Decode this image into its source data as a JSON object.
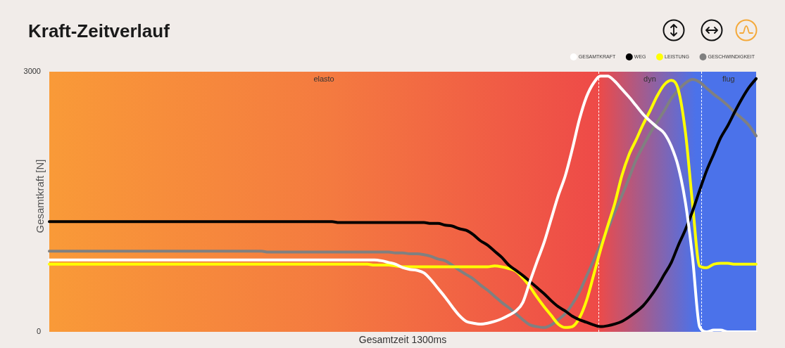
{
  "chart_data": {
    "type": "line",
    "title": "Kraft-Zeitverlauf",
    "xlabel": "Gesamtzeit 1300ms",
    "ylabel": "Gesamtkraft [N]",
    "categories": [
      null,
      null,
      null,
      null,
      null,
      null,
      null,
      null,
      null,
      null,
      null,
      null,
      null,
      null,
      null,
      null,
      null,
      null,
      null,
      null,
      null,
      null,
      null,
      null,
      null,
      null,
      null,
      null,
      null,
      null,
      null,
      null,
      null,
      null,
      null,
      null,
      null,
      null,
      null,
      null,
      null,
      null,
      null,
      null,
      null,
      null,
      null,
      null,
      null,
      null,
      null,
      null,
      null,
      null,
      null,
      null,
      null,
      null,
      null,
      null,
      null,
      null,
      null,
      null,
      null,
      null,
      null,
      null,
      null,
      null,
      null,
      null,
      null,
      null,
      null,
      null,
      null,
      null,
      null,
      null,
      null,
      null,
      null,
      null,
      null,
      null,
      null,
      null,
      null,
      null,
      null,
      null,
      null,
      null,
      null,
      null,
      null,
      null,
      null,
      null,
      null
    ],
    "ylim": [
      0,
      3000
    ],
    "yticks": [
      0,
      3000
    ],
    "tick_labels": "y",
    "grid": false,
    "legend": "top right",
    "marker": "none",
    "line_style": "solid",
    "series": [
      {
        "name": "GESAMTKRAFT",
        "color": "#ffffff",
        "values": [
          830,
          830,
          830,
          830,
          830,
          830,
          830,
          830,
          830,
          830,
          830,
          830,
          830,
          830,
          830,
          830,
          830,
          830,
          830,
          830,
          830,
          830,
          830,
          830,
          830,
          830,
          830,
          830,
          830,
          830,
          830,
          830,
          830,
          830,
          830,
          830,
          830,
          830,
          830,
          830,
          830,
          830,
          830,
          830,
          830,
          830,
          830,
          820,
          800,
          780,
          740,
          720,
          710,
          680,
          600,
          500,
          400,
          290,
          190,
          120,
          100,
          90,
          100,
          120,
          150,
          190,
          240,
          340,
          580,
          810,
          1030,
          1300,
          1570,
          1800,
          2110,
          2450,
          2710,
          2870,
          2950,
          2950,
          2890,
          2800,
          2710,
          2610,
          2510,
          2430,
          2360,
          2290,
          2140,
          1900,
          1490,
          860,
          60,
          0,
          20,
          20,
          0,
          0,
          0,
          0,
          0
        ]
      },
      {
        "name": "WEG",
        "color": "#000000",
        "values": [
          1270,
          1270,
          1270,
          1270,
          1270,
          1270,
          1270,
          1270,
          1270,
          1270,
          1270,
          1270,
          1270,
          1270,
          1270,
          1270,
          1270,
          1270,
          1270,
          1270,
          1270,
          1270,
          1270,
          1270,
          1270,
          1270,
          1270,
          1270,
          1270,
          1270,
          1270,
          1270,
          1270,
          1270,
          1270,
          1270,
          1270,
          1270,
          1270,
          1270,
          1270,
          1260,
          1260,
          1260,
          1260,
          1260,
          1260,
          1260,
          1260,
          1260,
          1260,
          1260,
          1260,
          1260,
          1250,
          1250,
          1230,
          1220,
          1190,
          1170,
          1120,
          1050,
          1000,
          930,
          860,
          770,
          710,
          650,
          580,
          510,
          440,
          360,
          290,
          240,
          180,
          140,
          110,
          80,
          60,
          70,
          90,
          120,
          170,
          230,
          300,
          400,
          520,
          660,
          800,
          1000,
          1180,
          1390,
          1630,
          1860,
          2050,
          2240,
          2380,
          2540,
          2690,
          2820,
          2920
        ]
      },
      {
        "name": "LEISTUNG",
        "color": "#ffff00",
        "values": [
          780,
          780,
          780,
          780,
          780,
          780,
          780,
          780,
          780,
          780,
          780,
          780,
          780,
          780,
          780,
          780,
          780,
          780,
          780,
          780,
          780,
          780,
          780,
          780,
          780,
          780,
          780,
          780,
          780,
          780,
          780,
          780,
          780,
          780,
          780,
          780,
          780,
          780,
          780,
          780,
          780,
          780,
          780,
          780,
          780,
          780,
          770,
          770,
          770,
          760,
          750,
          750,
          750,
          750,
          750,
          750,
          750,
          750,
          750,
          750,
          750,
          750,
          750,
          760,
          750,
          730,
          700,
          620,
          520,
          400,
          290,
          190,
          90,
          50,
          60,
          160,
          360,
          650,
          950,
          1220,
          1480,
          1800,
          2040,
          2210,
          2390,
          2550,
          2720,
          2850,
          2900,
          2790,
          2300,
          1480,
          760,
          740,
          780,
          790,
          790,
          780,
          780,
          780,
          780
        ]
      },
      {
        "name": "GESCHWINDIGKEIT",
        "color": "#808080",
        "values": [
          930,
          930,
          930,
          930,
          930,
          930,
          930,
          930,
          930,
          930,
          930,
          930,
          930,
          930,
          930,
          930,
          930,
          930,
          930,
          930,
          930,
          930,
          930,
          930,
          930,
          930,
          930,
          930,
          930,
          930,
          930,
          920,
          920,
          920,
          920,
          920,
          920,
          920,
          920,
          920,
          920,
          920,
          920,
          920,
          920,
          920,
          920,
          920,
          920,
          910,
          910,
          900,
          900,
          890,
          870,
          840,
          820,
          770,
          710,
          660,
          610,
          540,
          480,
          410,
          340,
          280,
          210,
          140,
          80,
          60,
          50,
          80,
          140,
          210,
          320,
          460,
          640,
          820,
          1010,
          1180,
          1380,
          1570,
          1770,
          1980,
          2140,
          2290,
          2420,
          2550,
          2690,
          2790,
          2870,
          2910,
          2880,
          2810,
          2740,
          2680,
          2610,
          2530,
          2460,
          2380,
          2260
        ]
      }
    ],
    "annotations": [
      "elasto",
      "dyn",
      "flug"
    ]
  }
}
